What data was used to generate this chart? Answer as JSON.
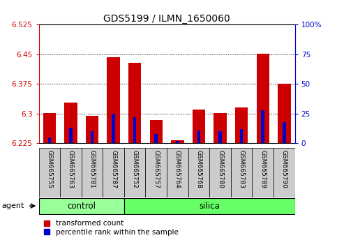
{
  "title": "GDS5199 / ILMN_1650060",
  "samples": [
    "GSM665755",
    "GSM665763",
    "GSM665781",
    "GSM665787",
    "GSM665752",
    "GSM665757",
    "GSM665764",
    "GSM665768",
    "GSM665780",
    "GSM665783",
    "GSM665789",
    "GSM665790"
  ],
  "groups": [
    "control",
    "control",
    "control",
    "control",
    "silica",
    "silica",
    "silica",
    "silica",
    "silica",
    "silica",
    "silica",
    "silica"
  ],
  "transformed_count": [
    6.302,
    6.328,
    6.295,
    6.443,
    6.428,
    6.283,
    6.232,
    6.31,
    6.302,
    6.315,
    6.452,
    6.375
  ],
  "percentile_rank": [
    5,
    13,
    10,
    25,
    22,
    8,
    2,
    11,
    10,
    12,
    28,
    18
  ],
  "ylim_left": [
    6.225,
    6.525
  ],
  "ylim_right": [
    0,
    100
  ],
  "yticks_left": [
    6.225,
    6.3,
    6.375,
    6.45,
    6.525
  ],
  "yticks_right": [
    0,
    25,
    50,
    75,
    100
  ],
  "ytick_labels_left": [
    "6.225",
    "6.3",
    "6.375",
    "6.45",
    "6.525"
  ],
  "ytick_labels_right": [
    "0",
    "25",
    "50",
    "75",
    "100%"
  ],
  "bar_color_red": "#cc0000",
  "bar_color_blue": "#0000cc",
  "bar_width": 0.6,
  "baseline": 6.225,
  "control_color": "#99ff99",
  "silica_color": "#66ff66",
  "legend_red": "transformed count",
  "legend_blue": "percentile rank within the sample",
  "agent_label": "agent",
  "bg_color": "#ffffff",
  "tick_color_left": "#cc0000",
  "tick_color_right": "#0000cc",
  "sample_bg_color": "#cccccc",
  "n_control": 4
}
